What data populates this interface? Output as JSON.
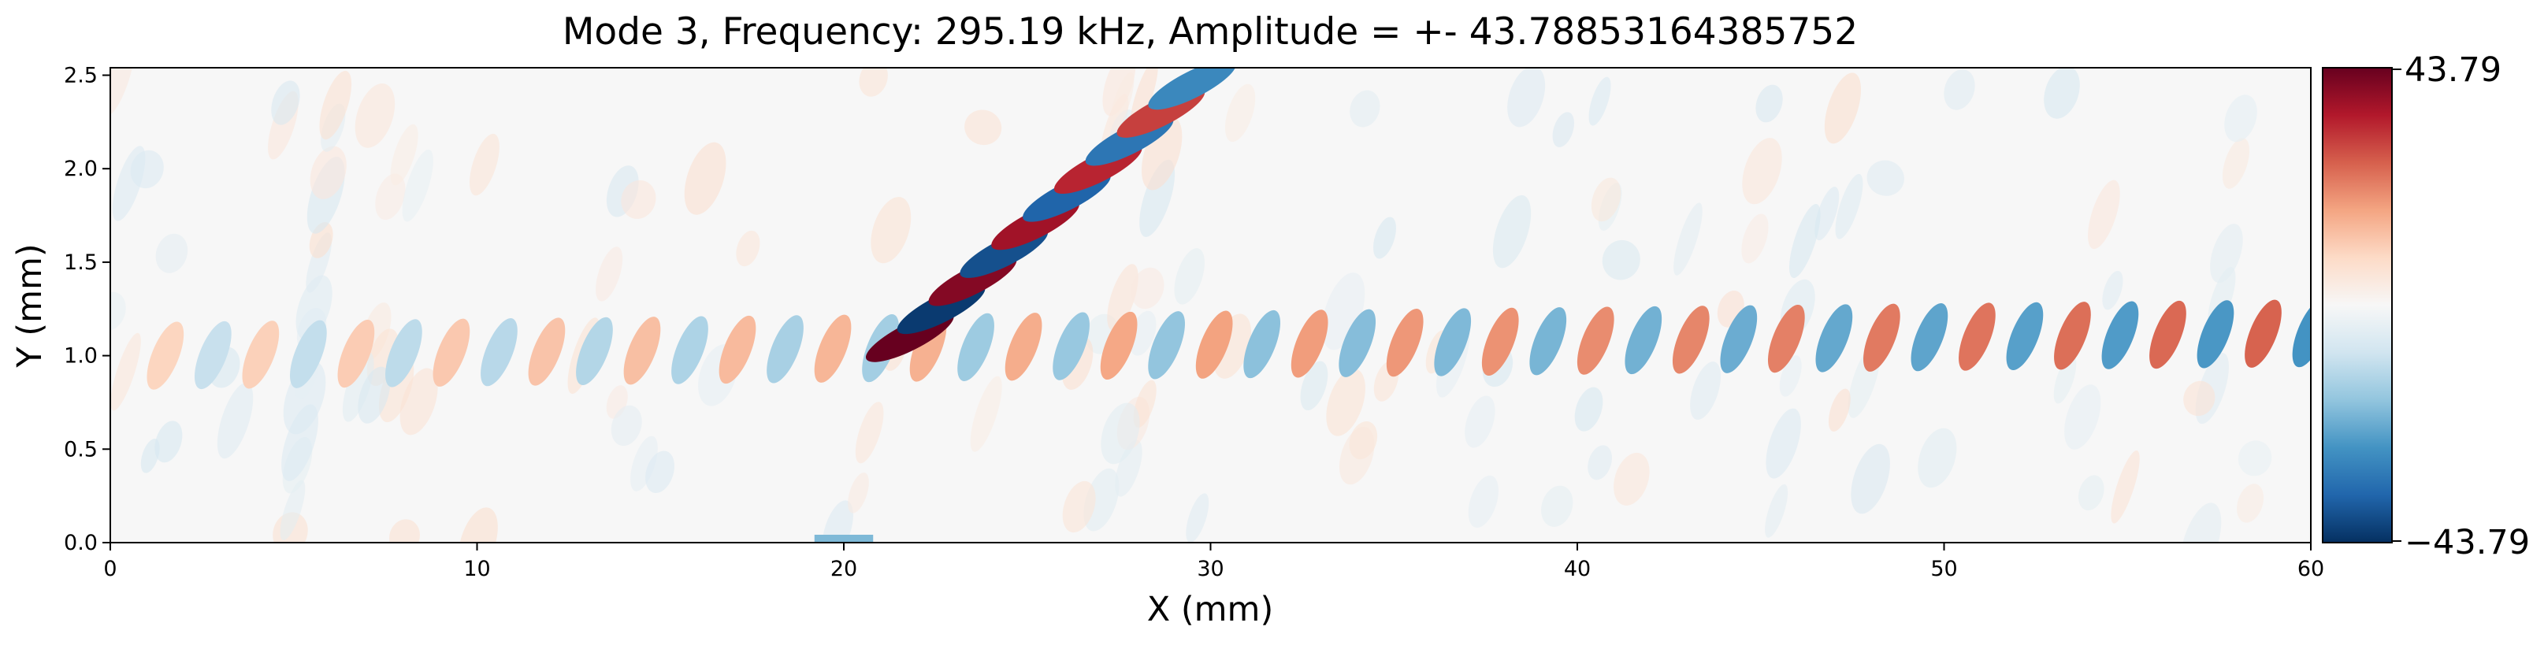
{
  "chart_data": {
    "type": "heatmap",
    "title": "Mode 3, Frequency: 295.19 kHz, Amplitude = +- 43.78853164385752",
    "xlabel": "X (mm)",
    "ylabel": "Y (mm)",
    "xlim": [
      0,
      60
    ],
    "ylim": [
      0,
      2.5
    ],
    "x_ticks": [
      "0",
      "10",
      "20",
      "30",
      "40",
      "50",
      "60"
    ],
    "y_ticks": [
      "0.0",
      "0.5",
      "1.0",
      "1.5",
      "2.0",
      "2.5"
    ],
    "x_tick_values": [
      0,
      10,
      20,
      30,
      40,
      50,
      60
    ],
    "y_tick_values": [
      0.0,
      0.5,
      1.0,
      1.5,
      2.0,
      2.5
    ],
    "colormap": "RdBu_r",
    "colorbar": {
      "min": -43.79,
      "max": 43.79,
      "min_label": "−43.79",
      "max_label": "43.79",
      "colors": [
        "#053061",
        "#2166ac",
        "#4393c3",
        "#92c5de",
        "#d1e5f0",
        "#f7f7f7",
        "#fddbc7",
        "#f4a582",
        "#d6604d",
        "#b2182b",
        "#67001f"
      ]
    },
    "field_features": {
      "plate_mode": {
        "center_y_mm": 1.0,
        "wavelength_mm": 2.6,
        "x_start_mm": 1.5,
        "x_end_mm": 60,
        "amplitude_left": 0.22,
        "amplitude_right": 0.6
      },
      "oblique_beam": {
        "start_x_mm": 21.8,
        "start_y_mm": 1.1,
        "end_x_mm": 29.5,
        "end_y_mm": 2.45,
        "amplitude_peak": 1.0,
        "amplitude_tail": 0.65
      },
      "source_patch": {
        "x_start_mm": 19.2,
        "x_end_mm": 20.8,
        "y_mm": 0.0,
        "relative_value": -0.45
      }
    }
  }
}
